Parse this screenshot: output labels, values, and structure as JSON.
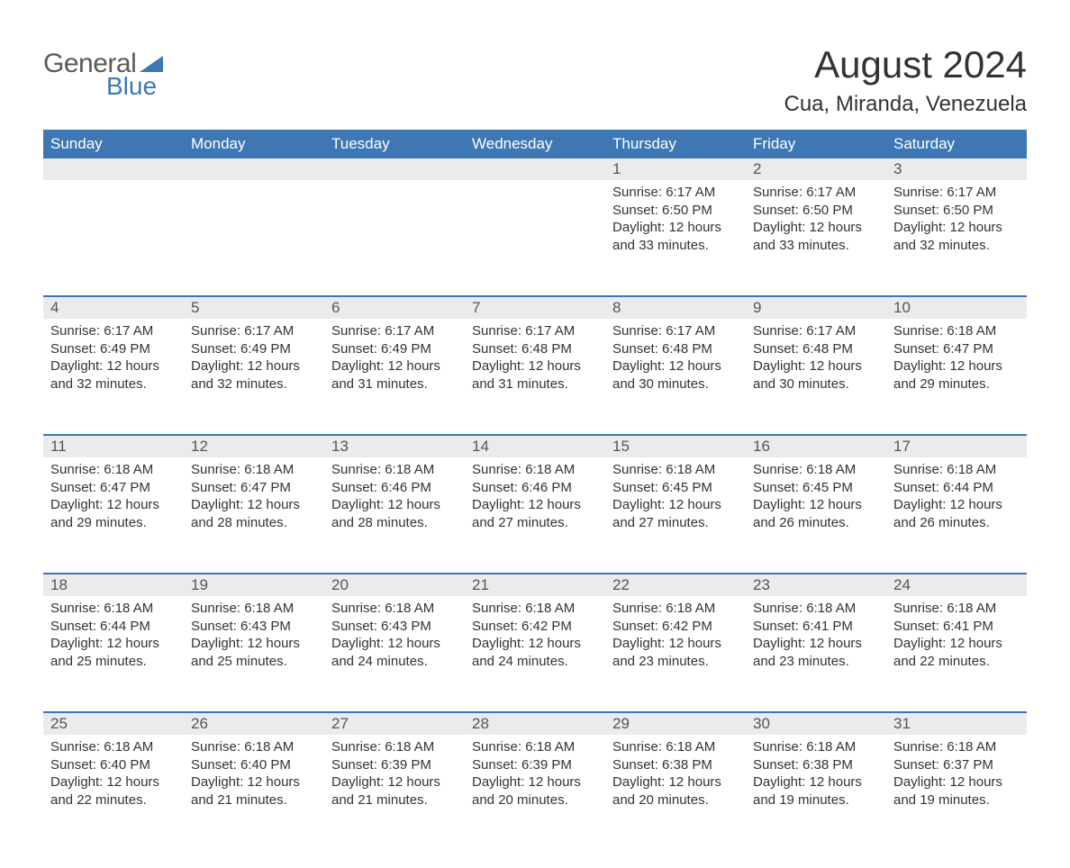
{
  "logo": {
    "text1": "General",
    "text2": "Blue",
    "color_gray": "#5a5a5a",
    "color_blue": "#3d78b4"
  },
  "title": "August 2024",
  "location": "Cua, Miranda, Venezuela",
  "colors": {
    "header_bg": "#3d78b4",
    "header_text": "#ffffff",
    "daynum_bg": "#ebebeb",
    "border": "#3d78b4",
    "body_text": "#333333",
    "background": "#ffffff"
  },
  "fonts": {
    "title_size": 42,
    "location_size": 24,
    "dow_size": 17,
    "cell_size": 15
  },
  "days_of_week": [
    "Sunday",
    "Monday",
    "Tuesday",
    "Wednesday",
    "Thursday",
    "Friday",
    "Saturday"
  ],
  "weeks": [
    {
      "nums": [
        "",
        "",
        "",
        "",
        "1",
        "2",
        "3"
      ],
      "cells": [
        null,
        null,
        null,
        null,
        {
          "sunrise": "Sunrise: 6:17 AM",
          "sunset": "Sunset: 6:50 PM",
          "daylight": "Daylight: 12 hours and 33 minutes."
        },
        {
          "sunrise": "Sunrise: 6:17 AM",
          "sunset": "Sunset: 6:50 PM",
          "daylight": "Daylight: 12 hours and 33 minutes."
        },
        {
          "sunrise": "Sunrise: 6:17 AM",
          "sunset": "Sunset: 6:50 PM",
          "daylight": "Daylight: 12 hours and 32 minutes."
        }
      ]
    },
    {
      "nums": [
        "4",
        "5",
        "6",
        "7",
        "8",
        "9",
        "10"
      ],
      "cells": [
        {
          "sunrise": "Sunrise: 6:17 AM",
          "sunset": "Sunset: 6:49 PM",
          "daylight": "Daylight: 12 hours and 32 minutes."
        },
        {
          "sunrise": "Sunrise: 6:17 AM",
          "sunset": "Sunset: 6:49 PM",
          "daylight": "Daylight: 12 hours and 32 minutes."
        },
        {
          "sunrise": "Sunrise: 6:17 AM",
          "sunset": "Sunset: 6:49 PM",
          "daylight": "Daylight: 12 hours and 31 minutes."
        },
        {
          "sunrise": "Sunrise: 6:17 AM",
          "sunset": "Sunset: 6:48 PM",
          "daylight": "Daylight: 12 hours and 31 minutes."
        },
        {
          "sunrise": "Sunrise: 6:17 AM",
          "sunset": "Sunset: 6:48 PM",
          "daylight": "Daylight: 12 hours and 30 minutes."
        },
        {
          "sunrise": "Sunrise: 6:17 AM",
          "sunset": "Sunset: 6:48 PM",
          "daylight": "Daylight: 12 hours and 30 minutes."
        },
        {
          "sunrise": "Sunrise: 6:18 AM",
          "sunset": "Sunset: 6:47 PM",
          "daylight": "Daylight: 12 hours and 29 minutes."
        }
      ]
    },
    {
      "nums": [
        "11",
        "12",
        "13",
        "14",
        "15",
        "16",
        "17"
      ],
      "cells": [
        {
          "sunrise": "Sunrise: 6:18 AM",
          "sunset": "Sunset: 6:47 PM",
          "daylight": "Daylight: 12 hours and 29 minutes."
        },
        {
          "sunrise": "Sunrise: 6:18 AM",
          "sunset": "Sunset: 6:47 PM",
          "daylight": "Daylight: 12 hours and 28 minutes."
        },
        {
          "sunrise": "Sunrise: 6:18 AM",
          "sunset": "Sunset: 6:46 PM",
          "daylight": "Daylight: 12 hours and 28 minutes."
        },
        {
          "sunrise": "Sunrise: 6:18 AM",
          "sunset": "Sunset: 6:46 PM",
          "daylight": "Daylight: 12 hours and 27 minutes."
        },
        {
          "sunrise": "Sunrise: 6:18 AM",
          "sunset": "Sunset: 6:45 PM",
          "daylight": "Daylight: 12 hours and 27 minutes."
        },
        {
          "sunrise": "Sunrise: 6:18 AM",
          "sunset": "Sunset: 6:45 PM",
          "daylight": "Daylight: 12 hours and 26 minutes."
        },
        {
          "sunrise": "Sunrise: 6:18 AM",
          "sunset": "Sunset: 6:44 PM",
          "daylight": "Daylight: 12 hours and 26 minutes."
        }
      ]
    },
    {
      "nums": [
        "18",
        "19",
        "20",
        "21",
        "22",
        "23",
        "24"
      ],
      "cells": [
        {
          "sunrise": "Sunrise: 6:18 AM",
          "sunset": "Sunset: 6:44 PM",
          "daylight": "Daylight: 12 hours and 25 minutes."
        },
        {
          "sunrise": "Sunrise: 6:18 AM",
          "sunset": "Sunset: 6:43 PM",
          "daylight": "Daylight: 12 hours and 25 minutes."
        },
        {
          "sunrise": "Sunrise: 6:18 AM",
          "sunset": "Sunset: 6:43 PM",
          "daylight": "Daylight: 12 hours and 24 minutes."
        },
        {
          "sunrise": "Sunrise: 6:18 AM",
          "sunset": "Sunset: 6:42 PM",
          "daylight": "Daylight: 12 hours and 24 minutes."
        },
        {
          "sunrise": "Sunrise: 6:18 AM",
          "sunset": "Sunset: 6:42 PM",
          "daylight": "Daylight: 12 hours and 23 minutes."
        },
        {
          "sunrise": "Sunrise: 6:18 AM",
          "sunset": "Sunset: 6:41 PM",
          "daylight": "Daylight: 12 hours and 23 minutes."
        },
        {
          "sunrise": "Sunrise: 6:18 AM",
          "sunset": "Sunset: 6:41 PM",
          "daylight": "Daylight: 12 hours and 22 minutes."
        }
      ]
    },
    {
      "nums": [
        "25",
        "26",
        "27",
        "28",
        "29",
        "30",
        "31"
      ],
      "cells": [
        {
          "sunrise": "Sunrise: 6:18 AM",
          "sunset": "Sunset: 6:40 PM",
          "daylight": "Daylight: 12 hours and 22 minutes."
        },
        {
          "sunrise": "Sunrise: 6:18 AM",
          "sunset": "Sunset: 6:40 PM",
          "daylight": "Daylight: 12 hours and 21 minutes."
        },
        {
          "sunrise": "Sunrise: 6:18 AM",
          "sunset": "Sunset: 6:39 PM",
          "daylight": "Daylight: 12 hours and 21 minutes."
        },
        {
          "sunrise": "Sunrise: 6:18 AM",
          "sunset": "Sunset: 6:39 PM",
          "daylight": "Daylight: 12 hours and 20 minutes."
        },
        {
          "sunrise": "Sunrise: 6:18 AM",
          "sunset": "Sunset: 6:38 PM",
          "daylight": "Daylight: 12 hours and 20 minutes."
        },
        {
          "sunrise": "Sunrise: 6:18 AM",
          "sunset": "Sunset: 6:38 PM",
          "daylight": "Daylight: 12 hours and 19 minutes."
        },
        {
          "sunrise": "Sunrise: 6:18 AM",
          "sunset": "Sunset: 6:37 PM",
          "daylight": "Daylight: 12 hours and 19 minutes."
        }
      ]
    }
  ]
}
